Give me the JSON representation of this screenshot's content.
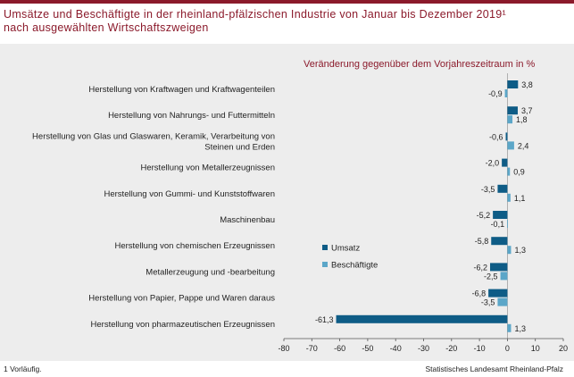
{
  "title_lines": [
    "Umsätze und Beschäftigte in der rheinland-pfälzischen Industrie von Januar bis Dezember 2019¹",
    "nach ausgewählten Wirtschaftszweigen"
  ],
  "footnote": "1 Vorläufig.",
  "source": "Statistisches Landesamt Rheinland-Pfalz",
  "colors": {
    "umsatz": "#0e5c86",
    "beschaeftigte": "#5ba6c8",
    "brand": "#8b1a2b",
    "panel": "#ededed"
  },
  "chart_data": {
    "type": "bar",
    "orientation": "horizontal",
    "subtitle": "Veränderung gegenüber dem Vorjahreszeitraum in %",
    "categories": [
      [
        "Herstellung von Kraftwagen und Kraftwagenteilen"
      ],
      [
        "Herstellung von Nahrungs- und Futtermitteln"
      ],
      [
        "Herstellung von Glas und Glaswaren, Keramik, Verarbeitung von",
        "Steinen und Erden"
      ],
      [
        "Herstellung von Metallerzeugnissen"
      ],
      [
        "Herstellung von Gummi- und Kunststoffwaren"
      ],
      [
        "Maschinenbau"
      ],
      [
        "Herstellung von chemischen Erzeugnissen"
      ],
      [
        "Metallerzeugung und -bearbeitung"
      ],
      [
        "Herstellung von Papier, Pappe und Waren daraus"
      ],
      [
        "Herstellung von pharmazeutischen Erzeugnissen"
      ]
    ],
    "series": [
      {
        "name": "Umsatz",
        "values": [
          3.8,
          3.7,
          -0.6,
          -2.0,
          -3.5,
          -5.2,
          -5.8,
          -6.2,
          -6.8,
          -61.3
        ],
        "labels": [
          "3,8",
          "3,7",
          "-0,6",
          "-2,0",
          "-3,5",
          "-5,2",
          "-5,8",
          "-6,2",
          "-6,8",
          "-61,3"
        ]
      },
      {
        "name": "Beschäftigte",
        "values": [
          -0.9,
          1.8,
          2.4,
          0.9,
          1.1,
          -0.1,
          1.3,
          -2.5,
          -3.5,
          1.3
        ],
        "labels": [
          "-0,9",
          "1,8",
          "2,4",
          "0,9",
          "1,1",
          "-0,1",
          "1,3",
          "-2,5",
          "-3,5",
          "1,3"
        ]
      }
    ],
    "xlim": [
      -80,
      20
    ],
    "xticks": [
      -80,
      -70,
      -60,
      -50,
      -40,
      -30,
      -20,
      -10,
      0,
      10,
      20
    ],
    "legend_position": "right-middle"
  }
}
